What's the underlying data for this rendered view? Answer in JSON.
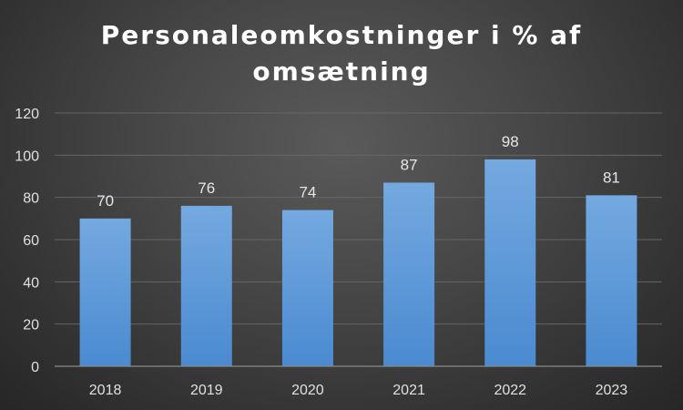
{
  "chart_data": {
    "type": "bar",
    "title_lines": [
      "Personaleomkostninger i % af",
      "omsætning"
    ],
    "categories": [
      "2018",
      "2019",
      "2020",
      "2021",
      "2022",
      "2023"
    ],
    "values": [
      70,
      76,
      74,
      87,
      98,
      81
    ],
    "data_labels": [
      "70",
      "76",
      "74",
      "87",
      "98",
      "81"
    ],
    "y_ticks": [
      "0",
      "20",
      "40",
      "60",
      "80",
      "100",
      "120"
    ],
    "ylim": [
      0,
      120
    ],
    "grid": true,
    "legend": "none",
    "colors": {
      "bar_top": "#74a9e0",
      "bar_bottom": "#4a8ad0",
      "background": "#3e3e3e"
    }
  }
}
